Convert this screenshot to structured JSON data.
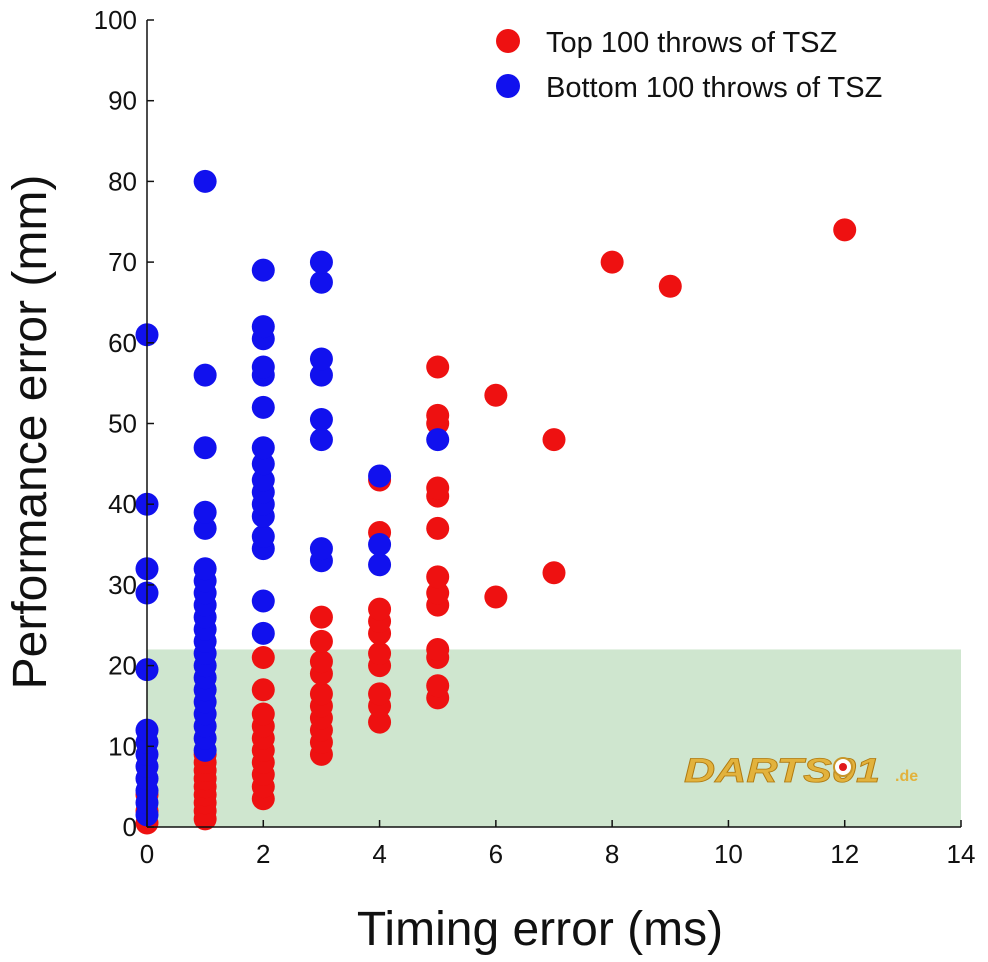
{
  "chart_data": {
    "type": "scatter",
    "title": "",
    "xlabel": "Timing error (ms)",
    "ylabel": "Performance error (mm)",
    "xlim": [
      0,
      14
    ],
    "ylim": [
      0,
      100
    ],
    "x_ticks": [
      "0",
      "2",
      "4",
      "6",
      "8",
      "10",
      "12",
      "14"
    ],
    "y_ticks": [
      "0",
      "10",
      "20",
      "30",
      "40",
      "50",
      "60",
      "70",
      "80",
      "90",
      "100"
    ],
    "grid": false,
    "legend_position": "top-right",
    "shaded_region": {
      "x": [
        0,
        14
      ],
      "y": [
        0,
        22
      ],
      "color": "#cfe6cf"
    },
    "series": [
      {
        "name": "Top 100 throws of TSZ",
        "color": "#ee1111",
        "points": [
          [
            0,
            0.5
          ],
          [
            0,
            2
          ],
          [
            0,
            4
          ],
          [
            1,
            1
          ],
          [
            1,
            2
          ],
          [
            1,
            3
          ],
          [
            1,
            4
          ],
          [
            1,
            5
          ],
          [
            1,
            6
          ],
          [
            1,
            7
          ],
          [
            1,
            8
          ],
          [
            1,
            9
          ],
          [
            2,
            3.5
          ],
          [
            2,
            5
          ],
          [
            2,
            6.5
          ],
          [
            2,
            8
          ],
          [
            2,
            9.5
          ],
          [
            2,
            11
          ],
          [
            2,
            12.5
          ],
          [
            2,
            14
          ],
          [
            2,
            17
          ],
          [
            2,
            21
          ],
          [
            3,
            9
          ],
          [
            3,
            10.5
          ],
          [
            3,
            12
          ],
          [
            3,
            13.5
          ],
          [
            3,
            15
          ],
          [
            3,
            16.5
          ],
          [
            3,
            19
          ],
          [
            3,
            20.5
          ],
          [
            3,
            23
          ],
          [
            3,
            26
          ],
          [
            4,
            13
          ],
          [
            4,
            15
          ],
          [
            4,
            16.5
          ],
          [
            4,
            20
          ],
          [
            4,
            21.5
          ],
          [
            4,
            24
          ],
          [
            4,
            25.5
          ],
          [
            4,
            27
          ],
          [
            4,
            36.5
          ],
          [
            4,
            43
          ],
          [
            5,
            16
          ],
          [
            5,
            17.5
          ],
          [
            5,
            21
          ],
          [
            5,
            22
          ],
          [
            5,
            27.5
          ],
          [
            5,
            29
          ],
          [
            5,
            31
          ],
          [
            5,
            37
          ],
          [
            5,
            41
          ],
          [
            5,
            42
          ],
          [
            5,
            50
          ],
          [
            5,
            51
          ],
          [
            5,
            57
          ],
          [
            6,
            28.5
          ],
          [
            6,
            53.5
          ],
          [
            7,
            31.5
          ],
          [
            7,
            48
          ],
          [
            8,
            70
          ],
          [
            9,
            67
          ],
          [
            12,
            74
          ]
        ]
      },
      {
        "name": "Bottom 100 throws of TSZ",
        "color": "#1111ee",
        "points": [
          [
            0,
            1.5
          ],
          [
            0,
            3
          ],
          [
            0,
            4.5
          ],
          [
            0,
            6
          ],
          [
            0,
            7.5
          ],
          [
            0,
            9
          ],
          [
            0,
            10.5
          ],
          [
            0,
            12
          ],
          [
            0,
            19.5
          ],
          [
            0,
            29
          ],
          [
            0,
            32
          ],
          [
            0,
            40
          ],
          [
            0,
            61
          ],
          [
            1,
            9.5
          ],
          [
            1,
            11
          ],
          [
            1,
            12.5
          ],
          [
            1,
            14
          ],
          [
            1,
            15.5
          ],
          [
            1,
            17
          ],
          [
            1,
            18.5
          ],
          [
            1,
            20
          ],
          [
            1,
            21.5
          ],
          [
            1,
            23
          ],
          [
            1,
            24.5
          ],
          [
            1,
            26
          ],
          [
            1,
            27.5
          ],
          [
            1,
            29
          ],
          [
            1,
            30.5
          ],
          [
            1,
            32
          ],
          [
            1,
            37
          ],
          [
            1,
            39
          ],
          [
            1,
            47
          ],
          [
            1,
            56
          ],
          [
            1,
            80
          ],
          [
            2,
            24
          ],
          [
            2,
            28
          ],
          [
            2,
            34.5
          ],
          [
            2,
            36
          ],
          [
            2,
            38.5
          ],
          [
            2,
            40
          ],
          [
            2,
            41.5
          ],
          [
            2,
            43
          ],
          [
            2,
            45
          ],
          [
            2,
            47
          ],
          [
            2,
            52
          ],
          [
            2,
            56
          ],
          [
            2,
            57
          ],
          [
            2,
            60.5
          ],
          [
            2,
            62
          ],
          [
            2,
            69
          ],
          [
            3,
            33
          ],
          [
            3,
            34.5
          ],
          [
            3,
            48
          ],
          [
            3,
            50.5
          ],
          [
            3,
            56
          ],
          [
            3,
            58
          ],
          [
            3,
            67.5
          ],
          [
            3,
            70
          ],
          [
            4,
            32.5
          ],
          [
            4,
            35
          ],
          [
            4,
            43.5
          ],
          [
            5,
            48
          ]
        ]
      }
    ]
  },
  "watermark": {
    "text": "DARTS01",
    "suffix": ".de"
  }
}
